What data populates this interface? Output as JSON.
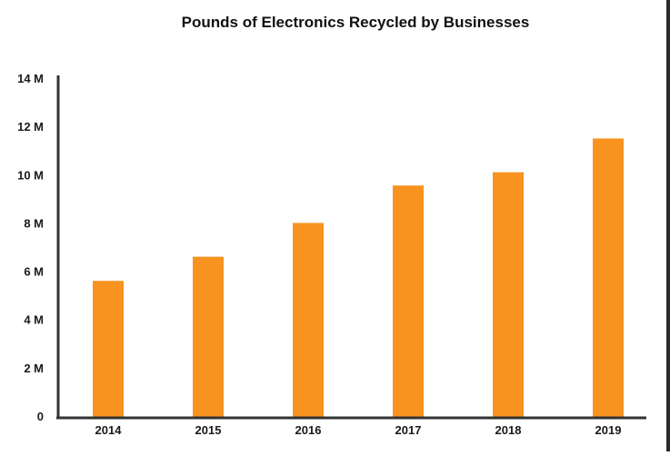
{
  "chart_data": {
    "type": "bar",
    "title": "Pounds of Electronics Recycled by Businesses",
    "xlabel": "",
    "ylabel": "",
    "categories": [
      "2014",
      "2015",
      "2016",
      "2017",
      "2018",
      "2019"
    ],
    "values": [
      5.6,
      6.6,
      8.0,
      9.55,
      10.1,
      11.5
    ],
    "ylim": [
      0,
      14
    ],
    "yticks": [
      {
        "value": 0,
        "label": "0"
      },
      {
        "value": 2,
        "label": "2 M"
      },
      {
        "value": 4,
        "label": "4 M"
      },
      {
        "value": 6,
        "label": "6 M"
      },
      {
        "value": 8,
        "label": "8 M"
      },
      {
        "value": 10,
        "label": "10 M"
      },
      {
        "value": 12,
        "label": "12 M"
      },
      {
        "value": 14,
        "label": "14 M"
      }
    ],
    "grid": false,
    "legend": "none",
    "colors": {
      "bar": "#F7931E",
      "axis": "#333333",
      "text": "#1a1a1a"
    }
  }
}
